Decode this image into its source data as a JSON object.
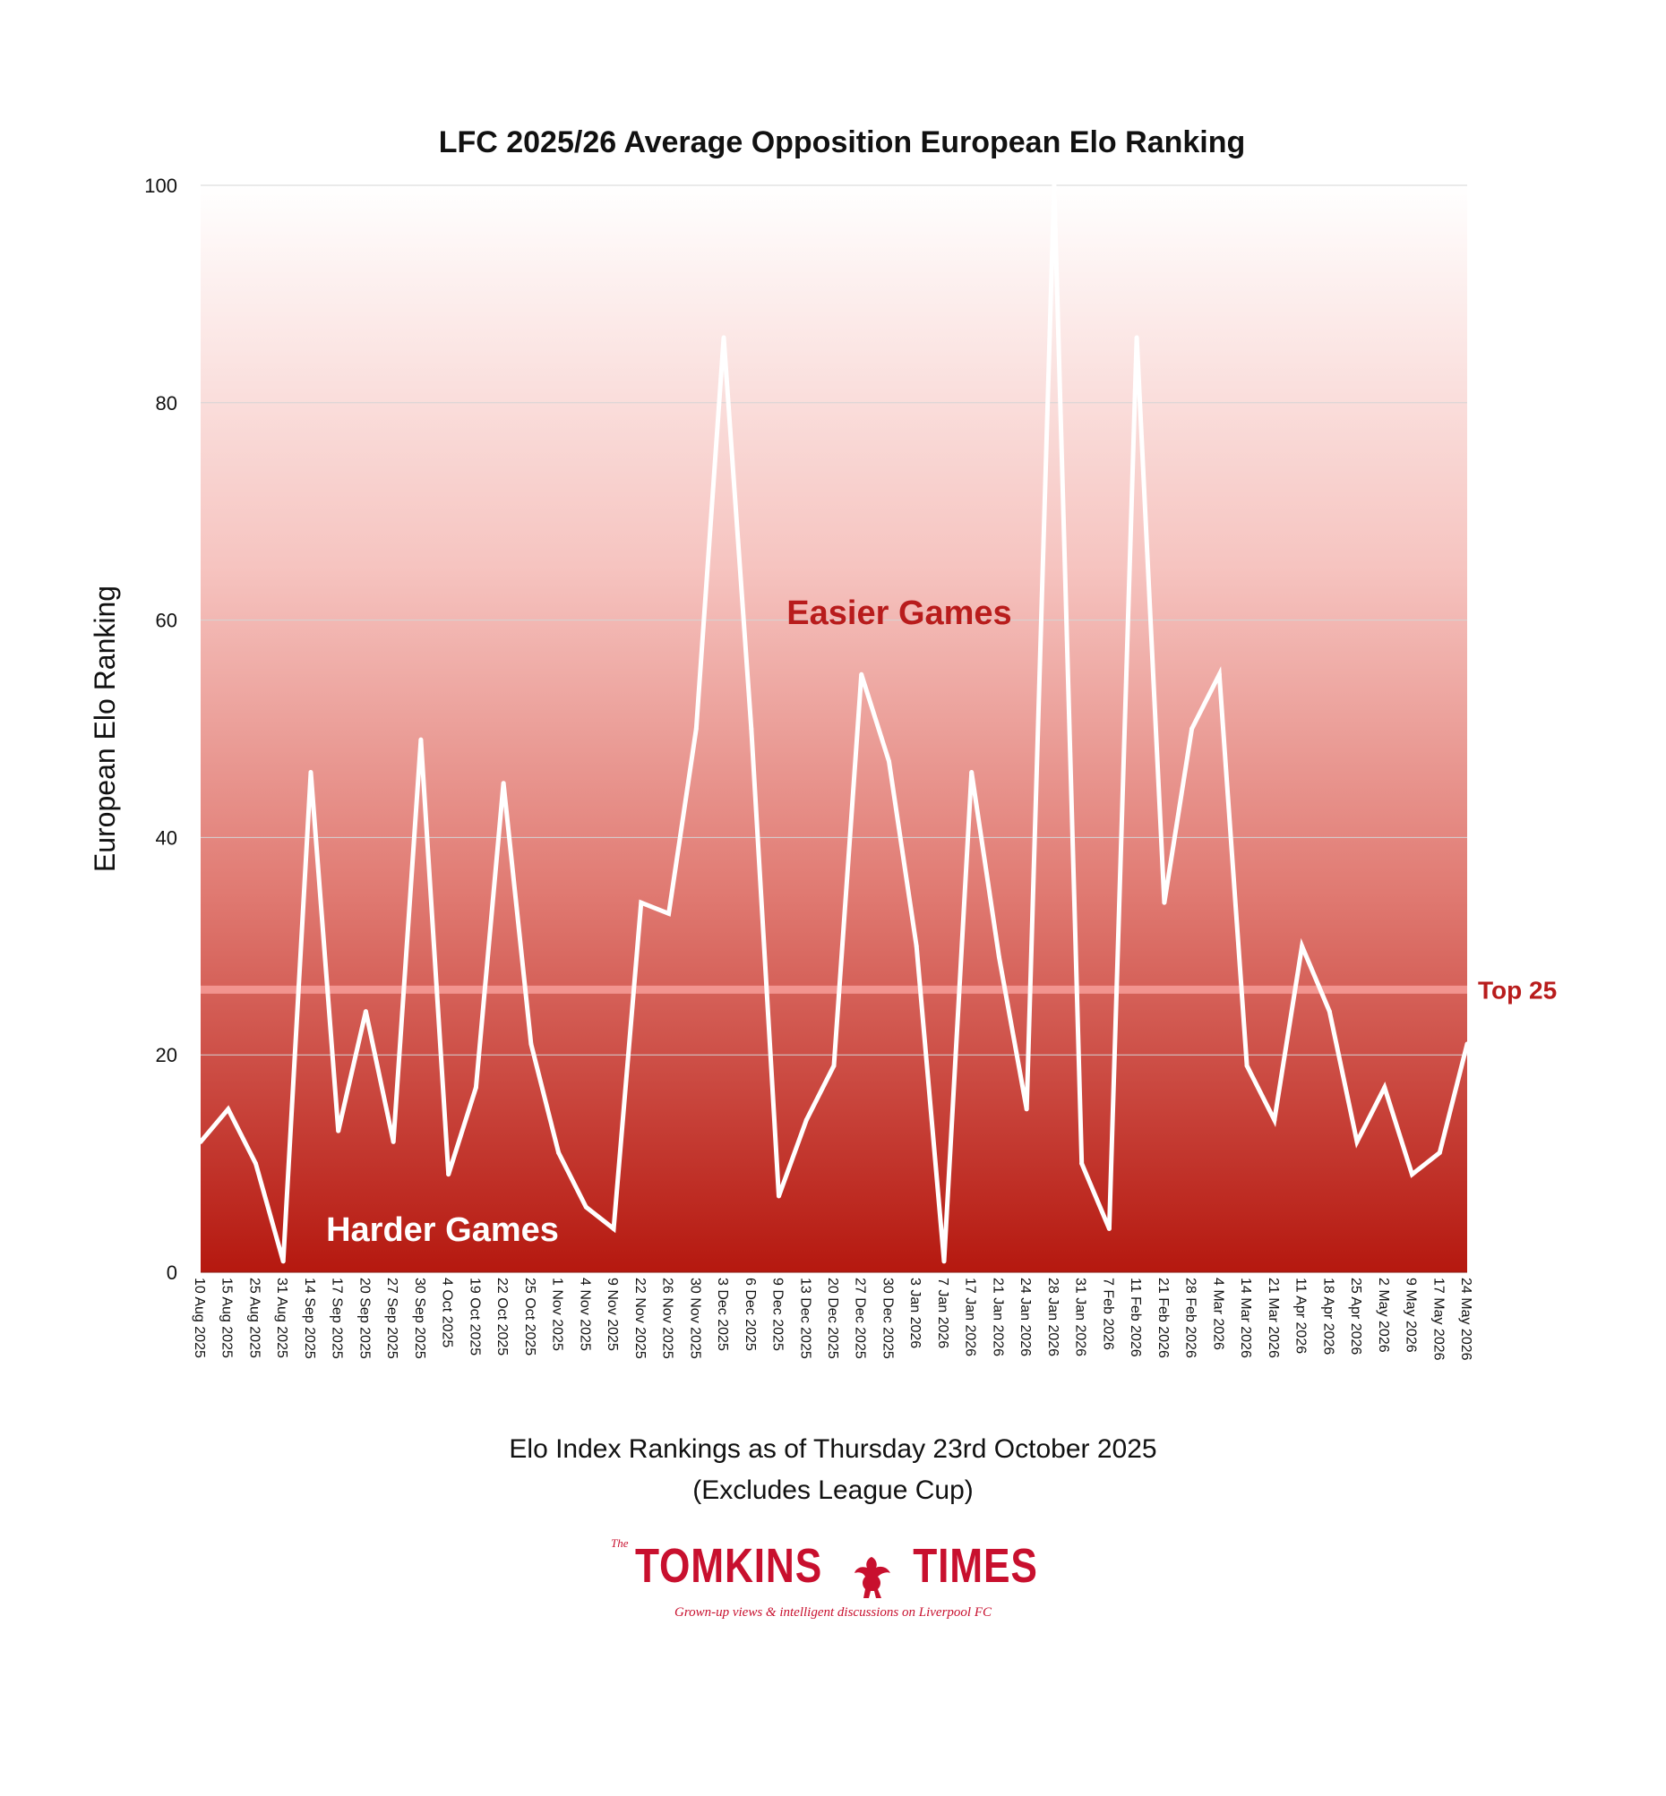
{
  "chart_data": {
    "type": "line",
    "title": "LFC 2025/26 Average Opposition European Elo Ranking",
    "xlabel": "",
    "ylabel": "European Elo Ranking",
    "ylim": [
      0,
      100
    ],
    "yticks": [
      0,
      20,
      40,
      60,
      80,
      100
    ],
    "grid": true,
    "background": "vertical gradient from white (top) to dark red (bottom)",
    "line_color": "#ffffff",
    "categories": [
      "10 Aug 2025",
      "15 Aug 2025",
      "25 Aug 2025",
      "31 Aug 2025",
      "14 Sep 2025",
      "17 Sep 2025",
      "20 Sep 2025",
      "27 Sep 2025",
      "30 Sep 2025",
      "4 Oct 2025",
      "19 Oct 2025",
      "22 Oct 2025",
      "25 Oct 2025",
      "1 Nov 2025",
      "4 Nov 2025",
      "9 Nov 2025",
      "22 Nov 2025",
      "26 Nov 2025",
      "30 Nov 2025",
      "3 Dec 2025",
      "6 Dec 2025",
      "9 Dec 2025",
      "13 Dec 2025",
      "20 Dec 2025",
      "27 Dec 2025",
      "30 Dec 2025",
      "3 Jan 2026",
      "7 Jan 2026",
      "17 Jan 2026",
      "21 Jan 2026",
      "24 Jan 2026",
      "28 Jan 2026",
      "31 Jan 2026",
      "7 Feb 2026",
      "11 Feb 2026",
      "21 Feb 2026",
      "28 Feb 2026",
      "4 Mar 2026",
      "14 Mar 2026",
      "21 Mar 2026",
      "11 Apr 2026",
      "18 Apr 2026",
      "25 Apr 2026",
      "2 May 2026",
      "9 May 2026",
      "17 May 2026",
      "24 May 2026"
    ],
    "values": [
      12,
      15,
      10,
      1,
      46,
      13,
      24,
      12,
      49,
      9,
      17,
      45,
      21,
      11,
      6,
      4,
      34,
      33,
      50,
      86,
      50,
      7,
      14,
      19,
      55,
      47,
      30,
      1,
      46,
      29,
      15,
      100,
      10,
      4,
      86,
      34,
      50,
      55,
      19,
      14,
      30,
      24,
      12,
      17,
      9,
      11,
      21
    ],
    "reference_line": {
      "value": 26,
      "label": "Top 25",
      "color": "#f2948f"
    },
    "annotations": [
      {
        "text": "Easier Games",
        "color": "#b81c1c"
      },
      {
        "text": "Harder Games",
        "color": "#ffffff"
      }
    ]
  },
  "footnote": {
    "line1": "Elo Index Rankings as of Thursday 23rd October 2025",
    "line2": "(Excludes League Cup)"
  },
  "logo": {
    "the": "The",
    "word1": "TOMKINS",
    "word2": "TIMES",
    "tagline": "Grown-up views & intelligent discussions on Liverpool FC",
    "color": "#c8102e"
  }
}
